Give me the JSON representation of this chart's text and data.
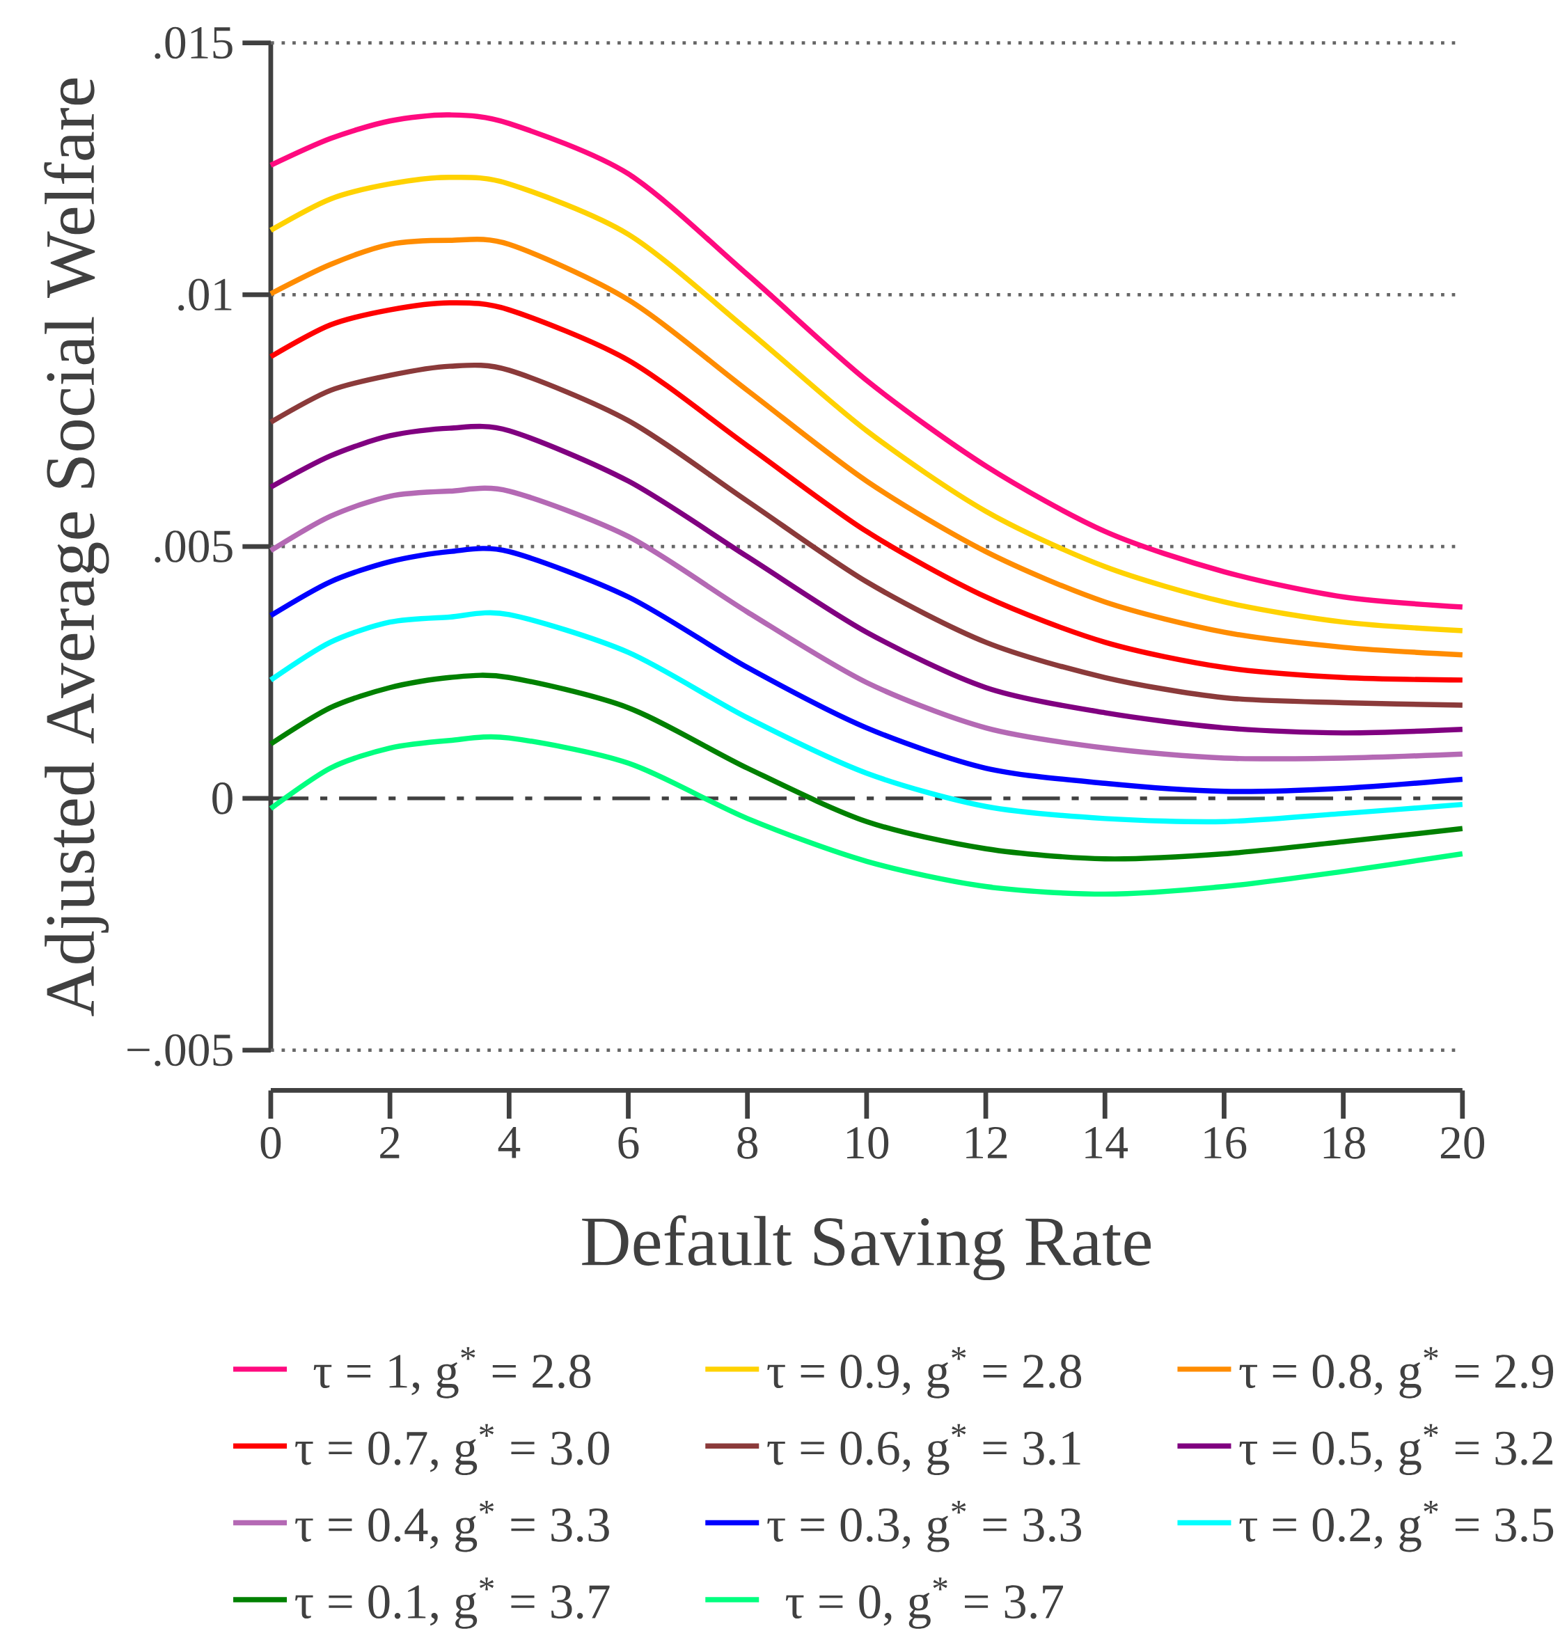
{
  "chart_data": {
    "type": "line",
    "xlabel": "Default Saving Rate",
    "ylabel": "Adjusted Average Social Welfare",
    "x": [
      0,
      1,
      2,
      3,
      4,
      6,
      8,
      10,
      12,
      14,
      16,
      18,
      20
    ],
    "xlim": [
      0,
      20
    ],
    "xticks": [
      0,
      2,
      4,
      6,
      8,
      10,
      12,
      14,
      16,
      18,
      20
    ],
    "ylim": [
      -0.005,
      0.015
    ],
    "yticks": [
      {
        "value": -0.005,
        "label": "−.005"
      },
      {
        "value": 0,
        "label": "0"
      },
      {
        "value": 0.005,
        "label": ".005"
      },
      {
        "value": 0.01,
        "label": ".01"
      },
      {
        "value": 0.015,
        "label": ".015"
      }
    ],
    "grid": "y",
    "legend": "bottom",
    "marker": "none",
    "line_style": "solid",
    "ref_lines": [
      {
        "axis": "y",
        "value": 0,
        "color": "#404040",
        "line_style": "dashed"
      }
    ],
    "series": [
      {
        "name": "τ = 1, g$^{*}$ = 2.8",
        "color": "#ff0a7f",
        "values": [
          0.01257,
          0.0131,
          0.01345,
          0.01357,
          0.0134,
          0.0124,
          0.0104,
          0.0083,
          0.0066,
          0.0053,
          0.0045,
          0.004,
          0.0038
        ]
      },
      {
        "name": "τ = 0.9, g$^{*}$ = 2.8",
        "color": "#ffd200",
        "values": [
          0.01128,
          0.0119,
          0.0122,
          0.01233,
          0.0122,
          0.0112,
          0.0093,
          0.0073,
          0.0057,
          0.0046,
          0.0039,
          0.0035,
          0.00333
        ]
      },
      {
        "name": "τ = 0.8, g$^{*}$ = 2.9",
        "color": "#ff8c00",
        "values": [
          0.01002,
          0.0106,
          0.011,
          0.01108,
          0.011,
          0.0099,
          0.0081,
          0.0063,
          0.0049,
          0.0039,
          0.0033,
          0.003,
          0.00285
        ]
      },
      {
        "name": "τ = 0.7, g$^{*}$ = 3.0",
        "color": "#ff0000",
        "values": [
          0.00877,
          0.0094,
          0.0097,
          0.00984,
          0.0097,
          0.0087,
          0.007,
          0.0053,
          0.004,
          0.0031,
          0.0026,
          0.0024,
          0.00235
        ]
      },
      {
        "name": "τ = 0.6, g$^{*}$ = 3.1",
        "color": "#8b3a3a",
        "values": [
          0.00747,
          0.0081,
          0.0084,
          0.00858,
          0.0085,
          0.0075,
          0.0059,
          0.0043,
          0.0031,
          0.0024,
          0.002,
          0.0019,
          0.00185
        ]
      },
      {
        "name": "τ = 0.5, g$^{*}$ = 3.2",
        "color": "#800080",
        "values": [
          0.00618,
          0.0068,
          0.0072,
          0.00735,
          0.0073,
          0.0063,
          0.0048,
          0.0033,
          0.0022,
          0.0017,
          0.0014,
          0.0013,
          0.00137
        ]
      },
      {
        "name": "τ = 0.4, g$^{*}$ = 3.3",
        "color": "#b469b4",
        "values": [
          0.00492,
          0.0056,
          0.006,
          0.0061,
          0.0061,
          0.0052,
          0.0037,
          0.0023,
          0.0014,
          0.001,
          0.0008,
          0.0008,
          0.00088
        ]
      },
      {
        "name": "τ = 0.3, g$^{*}$ = 3.3",
        "color": "#0000ff",
        "values": [
          0.00363,
          0.0043,
          0.0047,
          0.0049,
          0.0049,
          0.004,
          0.0026,
          0.0014,
          0.0006,
          0.0003,
          0.00014,
          0.0002,
          0.00038
        ]
      },
      {
        "name": "τ = 0.2, g$^{*}$ = 3.5",
        "color": "#00ffff",
        "values": [
          0.00235,
          0.0031,
          0.0035,
          0.0036,
          0.00365,
          0.0029,
          0.0016,
          0.0005,
          -0.00016,
          -0.0004,
          -0.00046,
          -0.0003,
          -0.00012
        ]
      },
      {
        "name": "τ = 0.1, g$^{*}$ = 3.7",
        "color": "#008000",
        "values": [
          0.00108,
          0.0018,
          0.0022,
          0.0024,
          0.0024,
          0.0018,
          0.0006,
          -0.00046,
          -0.001,
          -0.0012,
          -0.0011,
          -0.00086,
          -0.0006
        ]
      },
      {
        "name": "τ = 0, g$^{*}$ = 3.7",
        "color": "#00ff7f",
        "values": [
          -0.0002,
          0.0006,
          0.001,
          0.00115,
          0.0012,
          0.0007,
          -0.0004,
          -0.00125,
          -0.00175,
          -0.0019,
          -0.00175,
          -0.00145,
          -0.0011
        ]
      }
    ]
  }
}
